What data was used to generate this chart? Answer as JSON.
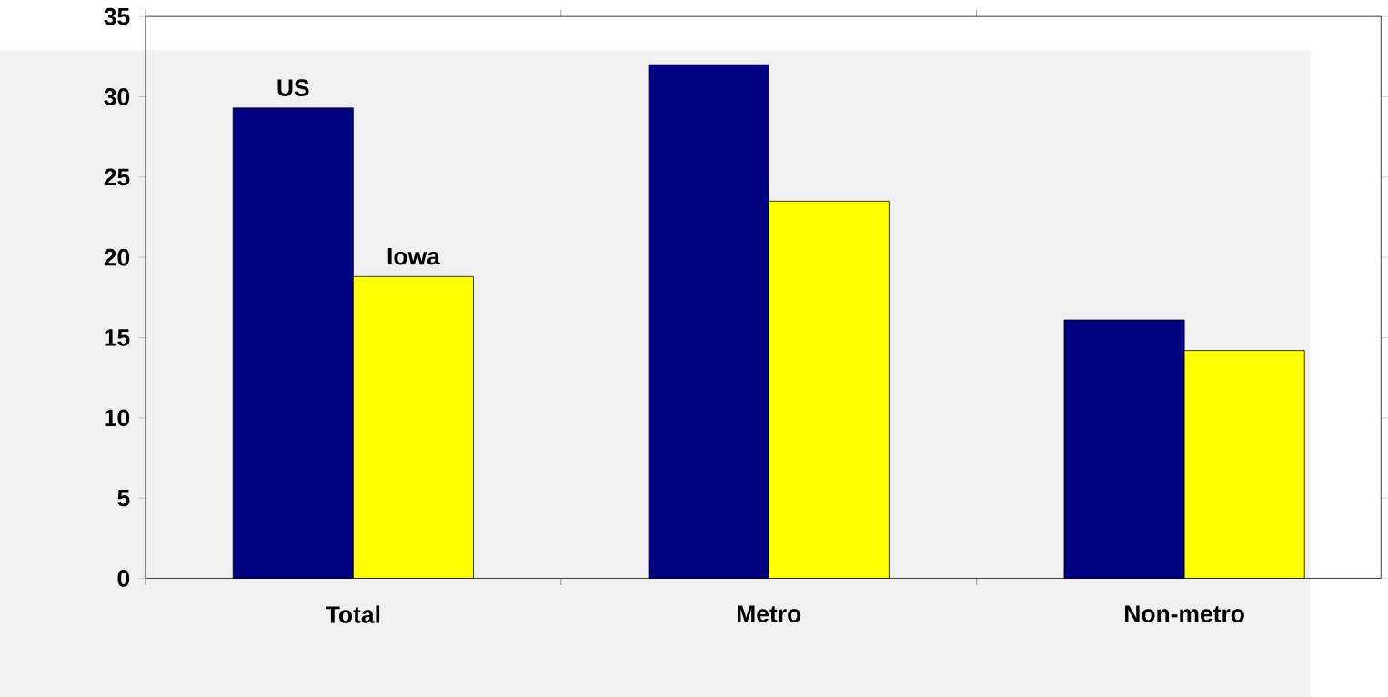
{
  "chart_data": {
    "type": "bar",
    "categories": [
      "Total",
      "Metro",
      "Non-metro"
    ],
    "series": [
      {
        "name": "US",
        "color": "#000080",
        "values": [
          29.3,
          32.0,
          16.1
        ]
      },
      {
        "name": "Iowa",
        "color": "#ffff00",
        "values": [
          18.8,
          23.5,
          14.2
        ]
      }
    ],
    "ylim": [
      0,
      35
    ],
    "yticks": [
      0,
      5,
      10,
      15,
      20,
      25,
      30,
      35
    ]
  }
}
